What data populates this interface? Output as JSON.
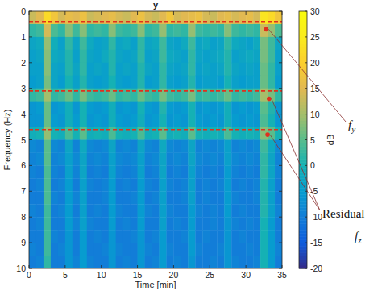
{
  "chart_data": {
    "type": "heatmap",
    "title": "y",
    "x_label": "Time [min]",
    "y_label": "Frequency (Hz)",
    "colorbar_label": "dB",
    "xlim": [
      0,
      35
    ],
    "ylim": [
      0,
      10
    ],
    "xticks": [
      0,
      5,
      10,
      15,
      20,
      25,
      30,
      35
    ],
    "yticks": [
      0,
      1,
      2,
      3,
      4,
      5,
      6,
      7,
      8,
      9,
      10
    ],
    "color_range": [
      -20,
      30
    ],
    "color_ticks": [
      -20,
      -15,
      -10,
      -5,
      0,
      5,
      10,
      15,
      20,
      25,
      30
    ],
    "x_edges": [
      0,
      1,
      2,
      3,
      4,
      5,
      6,
      7,
      8,
      9,
      10,
      11,
      12,
      13,
      14,
      15,
      16,
      17,
      18,
      19,
      20,
      21,
      22,
      23,
      24,
      25,
      26,
      27,
      28,
      29,
      30,
      31,
      32,
      33,
      34,
      35
    ],
    "y_edges": [
      0,
      0.5,
      1,
      1.5,
      2,
      2.5,
      3,
      3.5,
      4,
      4.5,
      5,
      5.5,
      6,
      6.5,
      7,
      7.5,
      8,
      8.5,
      9,
      9.5,
      10
    ],
    "cells": [
      [
        13,
        15,
        22,
        18,
        14,
        16,
        15,
        17,
        13,
        14,
        15,
        16,
        14,
        13,
        15,
        17,
        14,
        13,
        15,
        18,
        14,
        15,
        16,
        17,
        14,
        13,
        15,
        16,
        14,
        15,
        16,
        14,
        24,
        22,
        18
      ],
      [
        2,
        3,
        14,
        4,
        2,
        8,
        3,
        8,
        2,
        3,
        2,
        8,
        3,
        2,
        3,
        8,
        2,
        3,
        9,
        2,
        3,
        2,
        9,
        3,
        2,
        3,
        2,
        8,
        3,
        2,
        3,
        2,
        13,
        9,
        4
      ],
      [
        -3,
        -2,
        9,
        -1,
        -4,
        2,
        -3,
        3,
        -2,
        -4,
        -3,
        2,
        -3,
        -2,
        -4,
        2,
        -3,
        -2,
        3,
        -3,
        -4,
        -2,
        3,
        -3,
        -2,
        -4,
        -3,
        2,
        -2,
        -3,
        -4,
        -2,
        7,
        3,
        -3
      ],
      [
        -4,
        -3,
        8,
        -2,
        -3,
        1,
        -4,
        2,
        -3,
        -4,
        -2,
        1,
        -3,
        -4,
        -3,
        2,
        -4,
        -3,
        3,
        -2,
        -3,
        -4,
        2,
        -3,
        -4,
        -3,
        -2,
        1,
        -4,
        -3,
        -2,
        -3,
        7,
        3,
        -4
      ],
      [
        -4,
        -4,
        8,
        -3,
        -4,
        1,
        -3,
        2,
        -4,
        -3,
        -4,
        1,
        -4,
        -3,
        -4,
        1,
        -3,
        -4,
        2,
        -3,
        -4,
        -3,
        2,
        -4,
        -3,
        -4,
        -3,
        1,
        -3,
        -4,
        -3,
        -4,
        6,
        2,
        -4
      ],
      [
        -5,
        -4,
        7,
        -3,
        -5,
        0,
        -4,
        1,
        -4,
        -5,
        -4,
        0,
        -4,
        -5,
        -4,
        1,
        -5,
        -4,
        2,
        -4,
        -5,
        -4,
        1,
        -5,
        -4,
        -4,
        -5,
        0,
        -4,
        -5,
        -4,
        -4,
        6,
        2,
        -5
      ],
      [
        2,
        3,
        10,
        2,
        3,
        6,
        2,
        7,
        3,
        2,
        3,
        6,
        2,
        3,
        2,
        6,
        3,
        2,
        7,
        3,
        2,
        3,
        7,
        2,
        3,
        2,
        3,
        6,
        2,
        3,
        2,
        3,
        10,
        7,
        2
      ],
      [
        -6,
        -5,
        6,
        -6,
        -5,
        -1,
        -6,
        0,
        -5,
        -6,
        -5,
        -1,
        -6,
        -5,
        -6,
        0,
        -5,
        -6,
        1,
        -5,
        -6,
        -5,
        0,
        -6,
        -5,
        -6,
        -5,
        -1,
        -6,
        -5,
        -6,
        -5,
        5,
        1,
        -6
      ],
      [
        -6,
        -6,
        6,
        -5,
        -6,
        -1,
        -5,
        0,
        -6,
        -5,
        -6,
        -1,
        -5,
        -6,
        -5,
        -1,
        -6,
        -5,
        0,
        -6,
        -5,
        -6,
        0,
        -5,
        -6,
        -5,
        -6,
        -1,
        -5,
        -6,
        -5,
        -6,
        4,
        0,
        -6
      ],
      [
        -1,
        0,
        9,
        0,
        -1,
        4,
        0,
        5,
        -1,
        0,
        -1,
        4,
        0,
        -1,
        0,
        4,
        -1,
        0,
        5,
        -1,
        0,
        -1,
        5,
        0,
        -1,
        0,
        -1,
        4,
        0,
        -1,
        0,
        -1,
        8,
        5,
        0
      ],
      [
        -8,
        -9,
        5,
        -8,
        -9,
        -3,
        -9,
        -2,
        -8,
        -9,
        -8,
        -3,
        -9,
        -8,
        -9,
        -3,
        -8,
        -9,
        -2,
        -8,
        -9,
        -8,
        -3,
        -9,
        -8,
        -9,
        -8,
        -4,
        -9,
        -8,
        -9,
        -8,
        3,
        -2,
        -8
      ],
      [
        -9,
        -8,
        5,
        -9,
        -8,
        -4,
        -8,
        -3,
        -9,
        -8,
        -9,
        -4,
        -8,
        -9,
        -8,
        -4,
        -9,
        -8,
        -3,
        -9,
        -8,
        -9,
        -3,
        -8,
        -9,
        -8,
        -9,
        -4,
        -8,
        -9,
        -8,
        -9,
        2,
        -3,
        -9
      ],
      [
        -9,
        -10,
        4,
        -9,
        -10,
        -4,
        -9,
        -3,
        -10,
        -9,
        -10,
        -4,
        -9,
        -10,
        -9,
        -4,
        -10,
        -9,
        -3,
        -10,
        -9,
        -10,
        -4,
        -9,
        -10,
        -9,
        -10,
        -5,
        -9,
        -10,
        -9,
        -10,
        2,
        -3,
        -9
      ],
      [
        -10,
        -9,
        4,
        -10,
        -9,
        -5,
        -10,
        -4,
        -9,
        -10,
        -9,
        -5,
        -10,
        -9,
        -10,
        -5,
        -9,
        -10,
        -4,
        -9,
        -10,
        -9,
        -4,
        -10,
        -9,
        -10,
        -9,
        -5,
        -10,
        -9,
        -10,
        -9,
        1,
        -4,
        -10
      ],
      [
        -10,
        -10,
        4,
        -9,
        -10,
        -5,
        -9,
        -4,
        -10,
        -10,
        -9,
        -5,
        -10,
        -10,
        -9,
        -5,
        -10,
        -9,
        -4,
        -10,
        -10,
        -9,
        -4,
        -10,
        -9,
        -10,
        -10,
        -5,
        -9,
        -10,
        -10,
        -9,
        1,
        -4,
        -10
      ],
      [
        -9,
        -10,
        3,
        -10,
        -9,
        -5,
        -10,
        -4,
        -10,
        -9,
        -10,
        -5,
        -9,
        -10,
        -10,
        -5,
        -9,
        -10,
        -4,
        -9,
        -10,
        -10,
        -5,
        -9,
        -10,
        -9,
        -10,
        -5,
        -10,
        -9,
        -10,
        -10,
        1,
        -4,
        -9
      ],
      [
        -10,
        -9,
        3,
        -10,
        -10,
        -5,
        -9,
        -4,
        -9,
        -10,
        -10,
        -5,
        -10,
        -9,
        -10,
        -5,
        -10,
        -10,
        -4,
        -10,
        -9,
        -10,
        -5,
        -10,
        -10,
        -9,
        -10,
        -6,
        -9,
        -10,
        -9,
        -10,
        0,
        -5,
        -10
      ],
      [
        -10,
        -10,
        3,
        -9,
        -10,
        -6,
        -10,
        -5,
        -10,
        -9,
        -10,
        -6,
        -10,
        -10,
        -9,
        -6,
        -10,
        -9,
        -5,
        -10,
        -10,
        -9,
        -5,
        -10,
        -9,
        -10,
        -10,
        -6,
        -10,
        -9,
        -10,
        -10,
        0,
        -5,
        -10
      ],
      [
        -9,
        -10,
        3,
        -10,
        -9,
        -6,
        -10,
        -5,
        -10,
        -10,
        -9,
        -6,
        -9,
        -10,
        -10,
        -6,
        -9,
        -10,
        -5,
        -9,
        -10,
        -10,
        -5,
        -9,
        -10,
        -10,
        -9,
        -6,
        -10,
        -10,
        -9,
        -10,
        0,
        -5,
        -9
      ],
      [
        -10,
        -9,
        2,
        -10,
        -10,
        -6,
        -9,
        -5,
        -9,
        -10,
        -10,
        -6,
        -10,
        -9,
        -10,
        -6,
        -10,
        -9,
        -5,
        -10,
        -9,
        -10,
        -6,
        -10,
        -10,
        -9,
        -10,
        -6,
        -9,
        -10,
        -10,
        -9,
        0,
        -5,
        -10
      ]
    ],
    "markers": [
      {
        "y": 0.4,
        "point": [
          32.8,
          0.7
        ]
      },
      {
        "y": 3.1,
        "point": [
          33.2,
          3.4
        ]
      },
      {
        "y": 4.6,
        "point": [
          33.0,
          4.8
        ]
      }
    ],
    "annotations": [
      {
        "text": "f",
        "subscript": "y"
      },
      {
        "text": "Residual"
      },
      {
        "text": "f",
        "subscript": "z"
      }
    ]
  }
}
